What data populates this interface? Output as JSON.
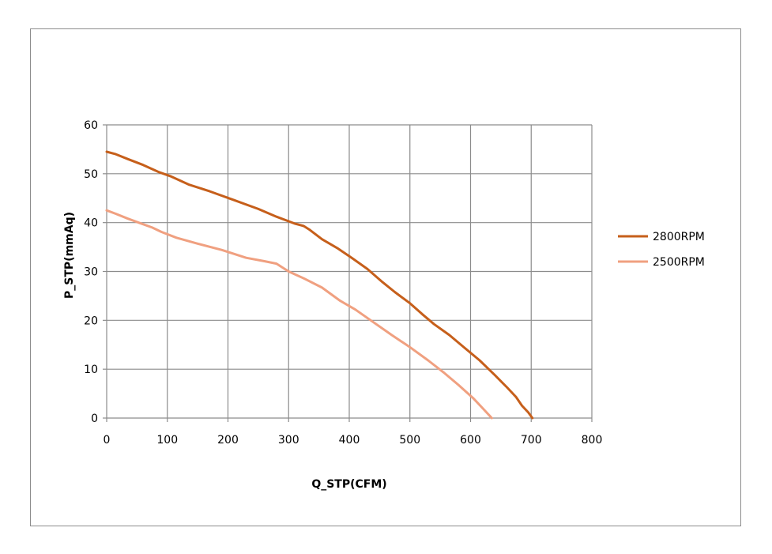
{
  "chart_data": {
    "type": "line",
    "title": "",
    "xlabel": "Q_STP(CFM)",
    "ylabel": "P_STP(mmAq)",
    "xlim": [
      0,
      800
    ],
    "ylim": [
      0,
      60
    ],
    "xticks": [
      0,
      100,
      200,
      300,
      400,
      500,
      600,
      700,
      800
    ],
    "yticks": [
      0,
      10,
      20,
      30,
      40,
      50,
      60
    ],
    "grid": true,
    "legend_position": "right",
    "series": [
      {
        "name": "2800RPM",
        "color": "#c65f1b",
        "x": [
          0,
          15,
          35,
          60,
          85,
          105,
          135,
          170,
          210,
          250,
          280,
          310,
          325,
          335,
          355,
          380,
          405,
          430,
          455,
          475,
          500,
          520,
          540,
          565,
          590,
          615,
          640,
          660,
          675,
          685,
          695,
          702
        ],
        "y": [
          54.5,
          54,
          53,
          51.8,
          50.4,
          49.5,
          47.8,
          46.4,
          44.6,
          42.8,
          41.2,
          39.8,
          39.3,
          38.5,
          36.6,
          34.8,
          32.7,
          30.5,
          27.8,
          25.8,
          23.5,
          21.3,
          19.2,
          17,
          14.4,
          11.8,
          8.8,
          6.3,
          4.3,
          2.5,
          1.2,
          0
        ]
      },
      {
        "name": "2500RPM",
        "color": "#f0a080",
        "x": [
          0,
          15,
          35,
          55,
          75,
          90,
          115,
          150,
          190,
          230,
          260,
          280,
          300,
          325,
          355,
          385,
          410,
          440,
          470,
          500,
          530,
          555,
          580,
          605,
          620,
          635
        ],
        "y": [
          42.5,
          41.8,
          40.8,
          39.9,
          39,
          38.1,
          36.9,
          35.7,
          34.4,
          32.8,
          32.1,
          31.6,
          30,
          28.6,
          26.7,
          24,
          22.2,
          19.6,
          17,
          14.5,
          11.8,
          9.4,
          6.8,
          4,
          2,
          0
        ]
      }
    ]
  }
}
